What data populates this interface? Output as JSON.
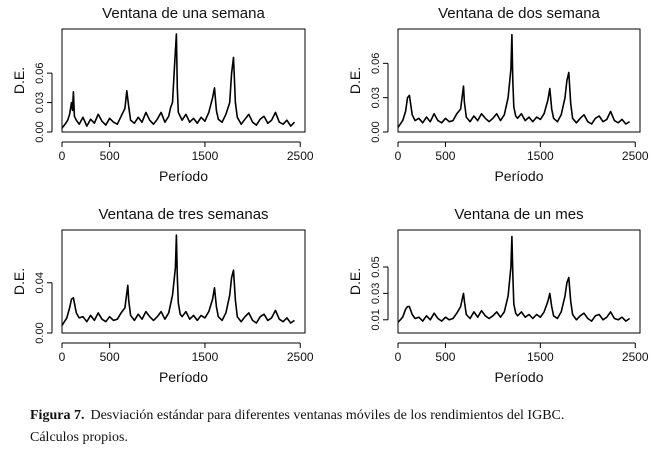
{
  "figure": {
    "label": "Figura 7.",
    "caption_line1": "Desviación estándar para diferentes ventanas móviles de los rendimientos del IGBC.",
    "caption_line2": "Cálculos propios."
  },
  "chart_data": [
    {
      "type": "line",
      "title": "Ventana de una semana",
      "xlabel": "Período",
      "ylabel": "D.E.",
      "xlim": [
        0,
        2550
      ],
      "ylim": [
        0,
        0.105
      ],
      "xticks": [
        0,
        500,
        1500,
        2500
      ],
      "xtick_labels": [
        "0",
        "500",
        "1500",
        "2500"
      ],
      "yticks": [
        0.0,
        0.03,
        0.06
      ],
      "ytick_labels": [
        "0.00",
        "0.03",
        "0.06"
      ],
      "grid": false,
      "series": [
        {
          "x": [
            0,
            40,
            60,
            80,
            100,
            110,
            120,
            130,
            150,
            180,
            220,
            260,
            300,
            340,
            380,
            420,
            460,
            500,
            540,
            580,
            620,
            660,
            680,
            700,
            720,
            760,
            800,
            840,
            880,
            920,
            960,
            1000,
            1040,
            1080,
            1120,
            1140,
            1160,
            1180,
            1200,
            1210,
            1220,
            1260,
            1300,
            1340,
            1380,
            1420,
            1460,
            1500,
            1540,
            1580,
            1600,
            1620,
            1640,
            1680,
            1720,
            1760,
            1780,
            1800,
            1820,
            1840,
            1880,
            1920,
            1960,
            2000,
            2040,
            2080,
            2120,
            2160,
            2200,
            2240,
            2280,
            2320,
            2360,
            2400,
            2440
          ],
          "y": [
            0.004,
            0.009,
            0.012,
            0.018,
            0.03,
            0.022,
            0.041,
            0.016,
            0.012,
            0.008,
            0.015,
            0.006,
            0.013,
            0.009,
            0.018,
            0.011,
            0.007,
            0.014,
            0.01,
            0.008,
            0.016,
            0.024,
            0.042,
            0.026,
            0.012,
            0.009,
            0.015,
            0.01,
            0.02,
            0.012,
            0.008,
            0.013,
            0.02,
            0.01,
            0.016,
            0.025,
            0.03,
            0.065,
            0.1,
            0.045,
            0.02,
            0.012,
            0.018,
            0.01,
            0.014,
            0.009,
            0.015,
            0.011,
            0.02,
            0.035,
            0.045,
            0.022,
            0.013,
            0.01,
            0.018,
            0.03,
            0.06,
            0.076,
            0.03,
            0.015,
            0.008,
            0.013,
            0.018,
            0.01,
            0.007,
            0.013,
            0.016,
            0.009,
            0.012,
            0.02,
            0.01,
            0.008,
            0.012,
            0.006,
            0.01
          ]
        }
      ]
    },
    {
      "type": "line",
      "title": "Ventana de dos semana",
      "xlabel": "Período",
      "ylabel": "D.E.",
      "xlim": [
        0,
        2550
      ],
      "ylim": [
        0,
        0.09
      ],
      "xticks": [
        0,
        500,
        1500,
        2500
      ],
      "xtick_labels": [
        "0",
        "500",
        "1500",
        "2500"
      ],
      "yticks": [
        0.0,
        0.03,
        0.06
      ],
      "ytick_labels": [
        "0.00",
        "0.03",
        "0.06"
      ],
      "grid": false,
      "series": [
        {
          "x": [
            0,
            50,
            80,
            100,
            120,
            150,
            180,
            220,
            260,
            300,
            340,
            380,
            420,
            460,
            500,
            540,
            580,
            620,
            660,
            690,
            700,
            720,
            760,
            800,
            840,
            880,
            920,
            960,
            1000,
            1040,
            1080,
            1120,
            1160,
            1190,
            1200,
            1210,
            1220,
            1240,
            1260,
            1300,
            1340,
            1380,
            1420,
            1460,
            1500,
            1540,
            1580,
            1600,
            1620,
            1640,
            1680,
            1720,
            1760,
            1780,
            1800,
            1820,
            1840,
            1880,
            1920,
            1960,
            2000,
            2040,
            2080,
            2120,
            2160,
            2200,
            2240,
            2280,
            2320,
            2360,
            2400,
            2440
          ],
          "y": [
            0.004,
            0.01,
            0.018,
            0.03,
            0.032,
            0.015,
            0.01,
            0.012,
            0.008,
            0.013,
            0.009,
            0.016,
            0.01,
            0.008,
            0.012,
            0.009,
            0.01,
            0.016,
            0.02,
            0.04,
            0.026,
            0.013,
            0.009,
            0.014,
            0.01,
            0.016,
            0.012,
            0.009,
            0.012,
            0.016,
            0.01,
            0.015,
            0.03,
            0.055,
            0.085,
            0.045,
            0.022,
            0.014,
            0.012,
            0.016,
            0.01,
            0.013,
            0.009,
            0.013,
            0.011,
            0.016,
            0.028,
            0.038,
            0.02,
            0.012,
            0.009,
            0.015,
            0.03,
            0.045,
            0.052,
            0.025,
            0.012,
            0.008,
            0.012,
            0.015,
            0.009,
            0.007,
            0.012,
            0.014,
            0.009,
            0.011,
            0.018,
            0.01,
            0.008,
            0.011,
            0.007,
            0.009
          ]
        }
      ]
    },
    {
      "type": "line",
      "title": "Ventana de tres semanas",
      "xlabel": "Período",
      "ylabel": "D.E.",
      "xlim": [
        0,
        2550
      ],
      "ylim": [
        0,
        0.082
      ],
      "xticks": [
        0,
        500,
        1500,
        2500
      ],
      "xtick_labels": [
        "0",
        "500",
        "1500",
        "2500"
      ],
      "yticks": [
        0.0,
        0.04
      ],
      "ytick_labels": [
        "0.00",
        "0.04"
      ],
      "grid": false,
      "series": [
        {
          "x": [
            0,
            50,
            80,
            100,
            120,
            150,
            180,
            220,
            260,
            300,
            340,
            380,
            420,
            460,
            500,
            540,
            580,
            620,
            660,
            690,
            700,
            720,
            760,
            800,
            840,
            880,
            920,
            960,
            1000,
            1040,
            1080,
            1120,
            1160,
            1190,
            1200,
            1210,
            1220,
            1240,
            1260,
            1300,
            1340,
            1380,
            1420,
            1460,
            1500,
            1540,
            1580,
            1600,
            1620,
            1640,
            1680,
            1720,
            1760,
            1780,
            1800,
            1820,
            1840,
            1880,
            1920,
            1960,
            2000,
            2040,
            2080,
            2120,
            2160,
            2200,
            2240,
            2280,
            2320,
            2360,
            2400,
            2440
          ],
          "y": [
            0.006,
            0.012,
            0.02,
            0.027,
            0.028,
            0.016,
            0.012,
            0.013,
            0.009,
            0.014,
            0.01,
            0.016,
            0.011,
            0.009,
            0.013,
            0.01,
            0.011,
            0.016,
            0.02,
            0.038,
            0.026,
            0.014,
            0.01,
            0.015,
            0.011,
            0.017,
            0.013,
            0.01,
            0.013,
            0.017,
            0.011,
            0.016,
            0.03,
            0.052,
            0.078,
            0.045,
            0.024,
            0.015,
            0.013,
            0.017,
            0.011,
            0.014,
            0.01,
            0.014,
            0.012,
            0.017,
            0.027,
            0.036,
            0.021,
            0.013,
            0.01,
            0.016,
            0.03,
            0.044,
            0.05,
            0.026,
            0.013,
            0.009,
            0.013,
            0.016,
            0.01,
            0.008,
            0.013,
            0.015,
            0.01,
            0.012,
            0.018,
            0.011,
            0.009,
            0.012,
            0.008,
            0.01
          ]
        }
      ]
    },
    {
      "type": "line",
      "title": "Ventana de un mes",
      "xlabel": "Período",
      "ylabel": "D.E.",
      "xlim": [
        0,
        2550
      ],
      "ylim": [
        0,
        0.078
      ],
      "xticks": [
        0,
        500,
        1500,
        2500
      ],
      "xtick_labels": [
        "0",
        "500",
        "1500",
        "2500"
      ],
      "yticks": [
        0.01,
        0.03,
        0.05
      ],
      "ytick_labels": [
        "0.01",
        "0.03",
        "0.05"
      ],
      "grid": false,
      "series": [
        {
          "x": [
            0,
            50,
            80,
            100,
            120,
            150,
            180,
            220,
            260,
            300,
            340,
            380,
            420,
            460,
            500,
            540,
            580,
            620,
            660,
            690,
            700,
            720,
            760,
            800,
            840,
            880,
            920,
            960,
            1000,
            1040,
            1080,
            1120,
            1160,
            1190,
            1200,
            1210,
            1220,
            1240,
            1260,
            1300,
            1340,
            1380,
            1420,
            1460,
            1500,
            1540,
            1580,
            1600,
            1620,
            1640,
            1680,
            1720,
            1760,
            1780,
            1800,
            1820,
            1840,
            1880,
            1920,
            1960,
            2000,
            2040,
            2080,
            2120,
            2160,
            2200,
            2240,
            2280,
            2320,
            2360,
            2400,
            2440
          ],
          "y": [
            0.008,
            0.012,
            0.018,
            0.02,
            0.02,
            0.014,
            0.011,
            0.012,
            0.009,
            0.013,
            0.01,
            0.015,
            0.011,
            0.009,
            0.012,
            0.01,
            0.011,
            0.015,
            0.02,
            0.03,
            0.024,
            0.014,
            0.011,
            0.016,
            0.012,
            0.017,
            0.013,
            0.011,
            0.013,
            0.016,
            0.012,
            0.016,
            0.028,
            0.05,
            0.073,
            0.045,
            0.022,
            0.015,
            0.013,
            0.016,
            0.012,
            0.014,
            0.011,
            0.014,
            0.012,
            0.016,
            0.024,
            0.03,
            0.02,
            0.013,
            0.011,
            0.016,
            0.028,
            0.038,
            0.042,
            0.024,
            0.014,
            0.01,
            0.013,
            0.015,
            0.011,
            0.009,
            0.013,
            0.014,
            0.01,
            0.012,
            0.016,
            0.011,
            0.01,
            0.012,
            0.009,
            0.011
          ]
        }
      ]
    }
  ]
}
